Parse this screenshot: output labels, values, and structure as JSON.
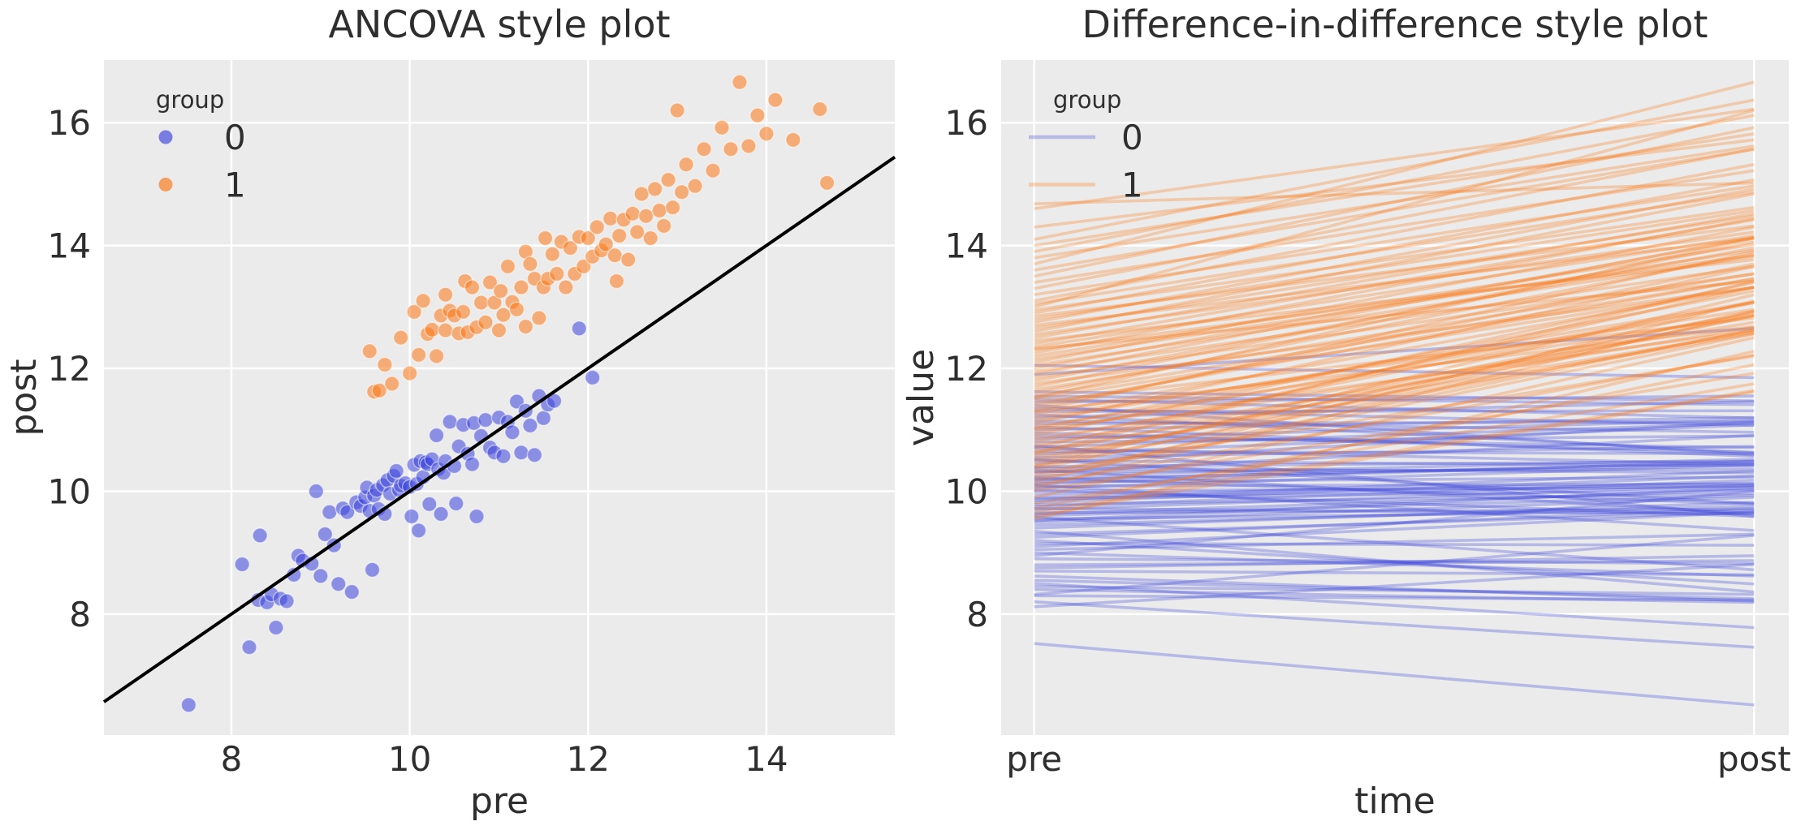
{
  "figure": {
    "background": "#ffffff",
    "axes_background": "#ebebeb",
    "grid_color": "#ffffff",
    "text_color": "#2e2e2e"
  },
  "colors": {
    "group0": "#3a44dc",
    "group1": "#fb7614",
    "identity_line": "#000000"
  },
  "chart_data": {
    "type": "scatter",
    "panels": [
      {
        "type": "scatter",
        "title": "ANCOVA style plot",
        "xlabel": "pre",
        "ylabel": "post",
        "xlim": [
          6.57,
          15.44
        ],
        "ylim": [
          6.03,
          17.02
        ],
        "xticks": [
          8,
          10,
          12,
          14
        ],
        "yticks": [
          8,
          10,
          12,
          14,
          16
        ],
        "grid": true,
        "identity_line": {
          "from": [
            6.57,
            6.57
          ],
          "to": [
            15.44,
            15.44
          ]
        },
        "legend": {
          "title": "group",
          "position": "upper-left",
          "marker": "dot",
          "entries": [
            {
              "label": "0",
              "group": "group0"
            },
            {
              "label": "1",
              "group": "group1"
            }
          ]
        }
      },
      {
        "type": "line",
        "title": "Difference-in-difference style plot",
        "xlabel": "time",
        "ylabel": "value",
        "categories": [
          "pre",
          "post"
        ],
        "x_positions": [
          0.042,
          0.956
        ],
        "ylim": [
          6.03,
          17.02
        ],
        "yticks": [
          8,
          10,
          12,
          14,
          16
        ],
        "grid": true,
        "legend": {
          "title": "group",
          "position": "upper-left",
          "marker": "line",
          "entries": [
            {
              "label": "0",
              "group": "group0"
            },
            {
              "label": "1",
              "group": "group1"
            }
          ]
        }
      }
    ],
    "subjects": {
      "group0": [
        [
          7.52,
          6.52
        ],
        [
          8.12,
          8.81
        ],
        [
          8.2,
          7.46
        ],
        [
          8.3,
          8.23
        ],
        [
          8.32,
          9.28
        ],
        [
          8.4,
          8.19
        ],
        [
          8.45,
          8.32
        ],
        [
          8.5,
          7.78
        ],
        [
          8.55,
          8.25
        ],
        [
          8.62,
          8.21
        ],
        [
          8.7,
          8.64
        ],
        [
          8.75,
          8.95
        ],
        [
          8.8,
          8.87
        ],
        [
          8.9,
          8.82
        ],
        [
          8.95,
          10.0
        ],
        [
          9.0,
          8.62
        ],
        [
          9.05,
          9.3
        ],
        [
          9.1,
          9.66
        ],
        [
          9.15,
          9.12
        ],
        [
          9.2,
          8.49
        ],
        [
          9.25,
          9.72
        ],
        [
          9.3,
          9.66
        ],
        [
          9.35,
          8.36
        ],
        [
          9.4,
          9.82
        ],
        [
          9.45,
          9.76
        ],
        [
          9.5,
          9.9
        ],
        [
          9.52,
          10.06
        ],
        [
          9.55,
          9.68
        ],
        [
          9.58,
          8.72
        ],
        [
          9.6,
          9.93
        ],
        [
          9.63,
          10.02
        ],
        [
          9.65,
          9.71
        ],
        [
          9.7,
          10.1
        ],
        [
          9.72,
          9.63
        ],
        [
          9.75,
          10.18
        ],
        [
          9.78,
          9.96
        ],
        [
          9.82,
          10.25
        ],
        [
          9.85,
          10.33
        ],
        [
          9.88,
          10.02
        ],
        [
          9.9,
          10.09
        ],
        [
          9.95,
          10.13
        ],
        [
          10.0,
          10.07
        ],
        [
          10.02,
          9.59
        ],
        [
          10.05,
          10.43
        ],
        [
          10.08,
          10.12
        ],
        [
          10.1,
          9.36
        ],
        [
          10.12,
          10.49
        ],
        [
          10.15,
          10.23
        ],
        [
          10.18,
          10.47
        ],
        [
          10.2,
          10.44
        ],
        [
          10.22,
          9.79
        ],
        [
          10.25,
          10.52
        ],
        [
          10.3,
          10.91
        ],
        [
          10.32,
          10.36
        ],
        [
          10.35,
          9.63
        ],
        [
          10.38,
          10.3
        ],
        [
          10.4,
          10.49
        ],
        [
          10.45,
          11.13
        ],
        [
          10.5,
          10.41
        ],
        [
          10.52,
          9.8
        ],
        [
          10.55,
          10.73
        ],
        [
          10.6,
          11.08
        ],
        [
          10.65,
          10.61
        ],
        [
          10.7,
          10.44
        ],
        [
          10.72,
          11.11
        ],
        [
          10.75,
          9.59
        ],
        [
          10.8,
          10.9
        ],
        [
          10.85,
          11.16
        ],
        [
          10.9,
          10.71
        ],
        [
          10.95,
          10.63
        ],
        [
          11.0,
          11.2
        ],
        [
          11.05,
          10.57
        ],
        [
          11.1,
          11.13
        ],
        [
          11.15,
          10.96
        ],
        [
          11.2,
          11.46
        ],
        [
          11.25,
          10.63
        ],
        [
          11.3,
          11.31
        ],
        [
          11.35,
          11.07
        ],
        [
          11.4,
          10.59
        ],
        [
          11.45,
          11.55
        ],
        [
          11.5,
          11.19
        ],
        [
          11.55,
          11.41
        ],
        [
          11.62,
          11.47
        ],
        [
          11.9,
          12.65
        ],
        [
          12.05,
          11.85
        ]
      ],
      "group1": [
        [
          9.55,
          12.28
        ],
        [
          9.6,
          11.62
        ],
        [
          9.66,
          11.64
        ],
        [
          9.72,
          12.06
        ],
        [
          9.8,
          11.75
        ],
        [
          9.9,
          12.5
        ],
        [
          10.0,
          11.92
        ],
        [
          10.05,
          12.92
        ],
        [
          10.1,
          12.22
        ],
        [
          10.15,
          13.1
        ],
        [
          10.2,
          12.56
        ],
        [
          10.25,
          12.63
        ],
        [
          10.3,
          12.2
        ],
        [
          10.35,
          12.86
        ],
        [
          10.4,
          12.62
        ],
        [
          10.4,
          13.2
        ],
        [
          10.45,
          12.94
        ],
        [
          10.5,
          12.86
        ],
        [
          10.55,
          12.57
        ],
        [
          10.6,
          12.92
        ],
        [
          10.62,
          13.42
        ],
        [
          10.65,
          12.59
        ],
        [
          10.7,
          13.32
        ],
        [
          10.75,
          12.67
        ],
        [
          10.8,
          13.07
        ],
        [
          10.85,
          12.75
        ],
        [
          10.9,
          13.4
        ],
        [
          10.95,
          13.07
        ],
        [
          11.0,
          12.62
        ],
        [
          11.02,
          13.26
        ],
        [
          11.05,
          12.87
        ],
        [
          11.1,
          13.66
        ],
        [
          11.15,
          13.08
        ],
        [
          11.2,
          12.96
        ],
        [
          11.25,
          13.32
        ],
        [
          11.3,
          12.68
        ],
        [
          11.3,
          13.9
        ],
        [
          11.35,
          13.7
        ],
        [
          11.4,
          13.46
        ],
        [
          11.45,
          12.82
        ],
        [
          11.5,
          13.32
        ],
        [
          11.52,
          14.12
        ],
        [
          11.55,
          13.46
        ],
        [
          11.6,
          13.86
        ],
        [
          11.65,
          13.54
        ],
        [
          11.7,
          14.06
        ],
        [
          11.75,
          13.32
        ],
        [
          11.8,
          13.96
        ],
        [
          11.85,
          13.54
        ],
        [
          11.9,
          14.14
        ],
        [
          11.95,
          13.66
        ],
        [
          12.0,
          14.12
        ],
        [
          12.05,
          13.82
        ],
        [
          12.1,
          14.3
        ],
        [
          12.15,
          13.92
        ],
        [
          12.2,
          14.02
        ],
        [
          12.25,
          14.44
        ],
        [
          12.3,
          13.84
        ],
        [
          12.32,
          13.42
        ],
        [
          12.35,
          14.16
        ],
        [
          12.4,
          14.42
        ],
        [
          12.45,
          13.77
        ],
        [
          12.5,
          14.52
        ],
        [
          12.55,
          14.22
        ],
        [
          12.6,
          14.84
        ],
        [
          12.65,
          14.48
        ],
        [
          12.7,
          14.12
        ],
        [
          12.75,
          14.92
        ],
        [
          12.8,
          14.57
        ],
        [
          12.85,
          14.32
        ],
        [
          12.9,
          15.07
        ],
        [
          12.95,
          14.62
        ],
        [
          13.0,
          16.2
        ],
        [
          13.05,
          14.87
        ],
        [
          13.1,
          15.32
        ],
        [
          13.2,
          14.97
        ],
        [
          13.3,
          15.57
        ],
        [
          13.4,
          15.22
        ],
        [
          13.5,
          15.92
        ],
        [
          13.6,
          15.57
        ],
        [
          13.7,
          16.66
        ],
        [
          13.8,
          15.62
        ],
        [
          13.9,
          16.12
        ],
        [
          14.0,
          15.82
        ],
        [
          14.1,
          16.37
        ],
        [
          14.3,
          15.72
        ],
        [
          14.6,
          16.22
        ],
        [
          14.68,
          15.02
        ]
      ]
    }
  },
  "style": {
    "point_opacity": 0.55,
    "point_edge": "rgba(255,255,255,0.5)",
    "line_opacity": 0.3,
    "legend_dot_opacity": 0.65,
    "legend_line_opacity": 0.3
  }
}
